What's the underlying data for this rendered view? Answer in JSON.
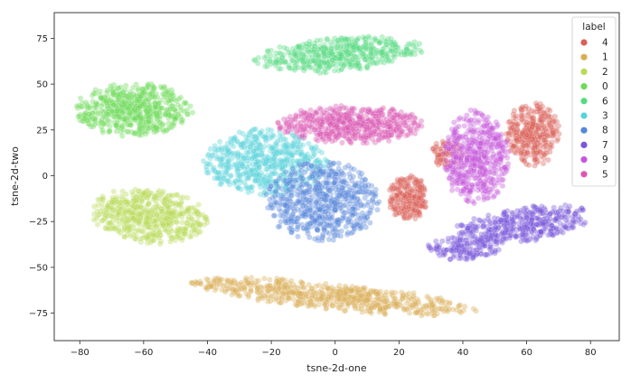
{
  "chart_data": {
    "type": "scatter",
    "xlabel": "tsne-2d-one",
    "ylabel": "tsne-2d-two",
    "xlim": [
      -88,
      89
    ],
    "ylim": [
      -90,
      89
    ],
    "x_ticks": [
      -80,
      -60,
      -40,
      -20,
      0,
      20,
      40,
      60,
      80
    ],
    "y_ticks": [
      -75,
      -50,
      -25,
      0,
      25,
      50,
      75
    ],
    "grid": false,
    "legend": {
      "title": "label",
      "placement": "top-right"
    },
    "series": [
      {
        "name": "4",
        "color": "#db5f57",
        "clusters": [
          {
            "cx": 62,
            "cy": 23,
            "rx": 8,
            "ry": 17,
            "n": 320
          },
          {
            "cx": 23,
            "cy": -12,
            "rx": 6,
            "ry": 12,
            "n": 230
          },
          {
            "cx": 35,
            "cy": 12,
            "rx": 5,
            "ry": 7,
            "n": 70
          }
        ]
      },
      {
        "name": "1",
        "color": "#dbad57",
        "clusters": [
          {
            "cx": 0,
            "cy": -66,
            "rx": 44,
            "ry": 7,
            "n": 620,
            "angle": -10
          }
        ]
      },
      {
        "name": "2",
        "color": "#b9db57",
        "clusters": [
          {
            "cx": -58,
            "cy": -22,
            "rx": 18,
            "ry": 14,
            "n": 520,
            "angle": -20
          }
        ]
      },
      {
        "name": "0",
        "color": "#6ddb57",
        "clusters": [
          {
            "cx": -63,
            "cy": 36,
            "rx": 18,
            "ry": 14,
            "n": 540
          }
        ]
      },
      {
        "name": "6",
        "color": "#57db80",
        "clusters": [
          {
            "cx": 1,
            "cy": 66,
            "rx": 26,
            "ry": 9,
            "n": 460,
            "angle": 8
          }
        ]
      },
      {
        "name": "3",
        "color": "#57d3db",
        "clusters": [
          {
            "cx": -22,
            "cy": 7,
            "rx": 19,
            "ry": 18,
            "n": 560
          }
        ]
      },
      {
        "name": "8",
        "color": "#5787db",
        "clusters": [
          {
            "cx": -4,
            "cy": -14,
            "rx": 17,
            "ry": 21,
            "n": 620
          }
        ]
      },
      {
        "name": "7",
        "color": "#7957db",
        "clusters": [
          {
            "cx": 58,
            "cy": -27,
            "rx": 22,
            "ry": 9,
            "n": 420,
            "angle": 16
          },
          {
            "cx": 40,
            "cy": -40,
            "rx": 11,
            "ry": 6,
            "n": 130
          }
        ]
      },
      {
        "name": "9",
        "color": "#c557db",
        "clusters": [
          {
            "cx": 44,
            "cy": 10,
            "rx": 10,
            "ry": 25,
            "n": 520
          }
        ]
      },
      {
        "name": "5",
        "color": "#db57b2",
        "clusters": [
          {
            "cx": 5,
            "cy": 28,
            "rx": 22,
            "ry": 10,
            "n": 540
          }
        ]
      }
    ]
  }
}
